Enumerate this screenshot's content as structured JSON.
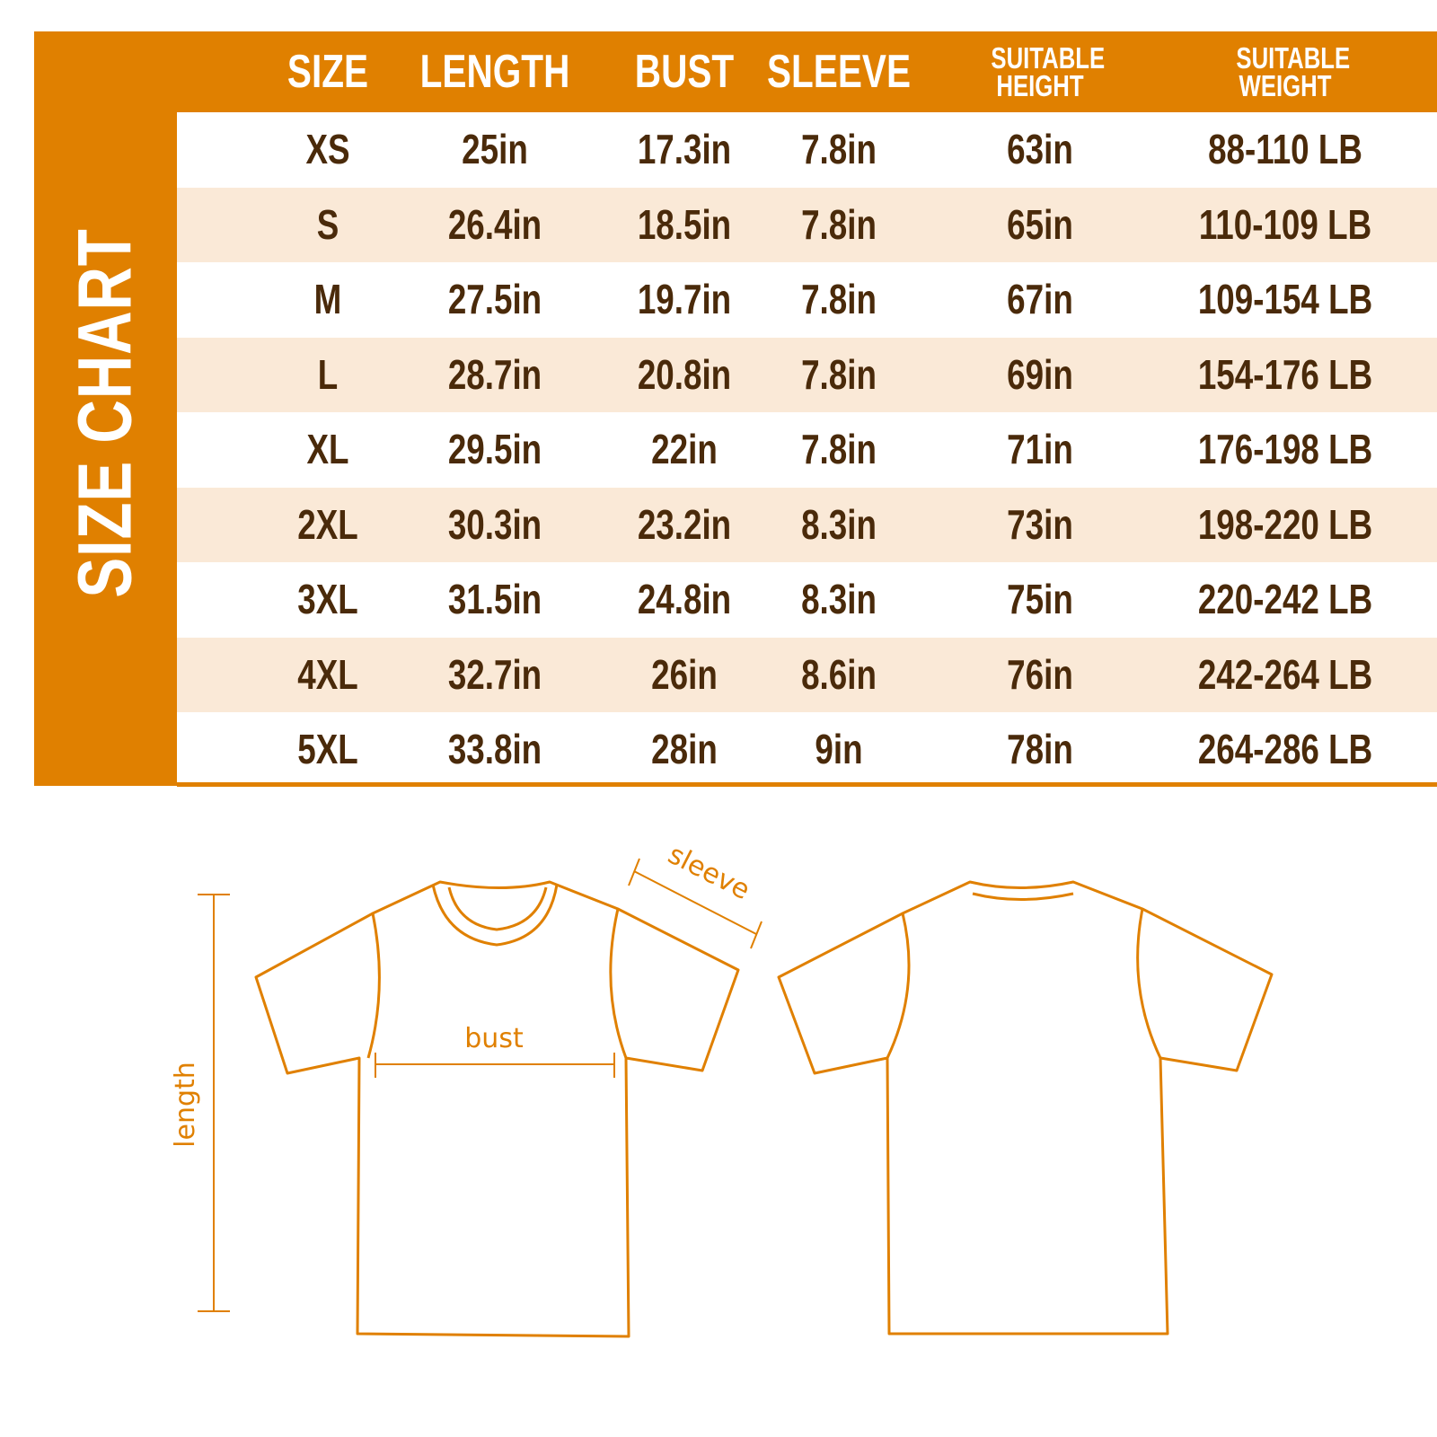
{
  "title": "SIZE CHART",
  "colors": {
    "accent": "#e08000",
    "text": "#4a2a0a",
    "alt_row": "#fae9d7"
  },
  "columns": [
    "SIZE",
    "LENGTH",
    "BUST",
    "SLEEVE",
    "SUITABLE HEIGHT",
    "SUITABLE WEIGHT"
  ],
  "rows": [
    [
      "XS",
      "25in",
      "17.3in",
      "7.8in",
      "63in",
      "88-110 LB"
    ],
    [
      "S",
      "26.4in",
      "18.5in",
      "7.8in",
      "65in",
      "110-109 LB"
    ],
    [
      "M",
      "27.5in",
      "19.7in",
      "7.8in",
      "67in",
      "109-154 LB"
    ],
    [
      "L",
      "28.7in",
      "20.8in",
      "7.8in",
      "69in",
      "154-176 LB"
    ],
    [
      "XL",
      "29.5in",
      "22in",
      "7.8in",
      "71in",
      "176-198 LB"
    ],
    [
      "2XL",
      "30.3in",
      "23.2in",
      "8.3in",
      "73in",
      "198-220 LB"
    ],
    [
      "3XL",
      "31.5in",
      "24.8in",
      "8.3in",
      "75in",
      "220-242 LB"
    ],
    [
      "4XL",
      "32.7in",
      "26in",
      "8.6in",
      "76in",
      "242-264 LB"
    ],
    [
      "5XL",
      "33.8in",
      "28in",
      "9in",
      "78in",
      "264-286 LB"
    ]
  ],
  "diagram": {
    "sleeve_label": "sleeve",
    "bust_label": "bust",
    "length_label": "length"
  }
}
